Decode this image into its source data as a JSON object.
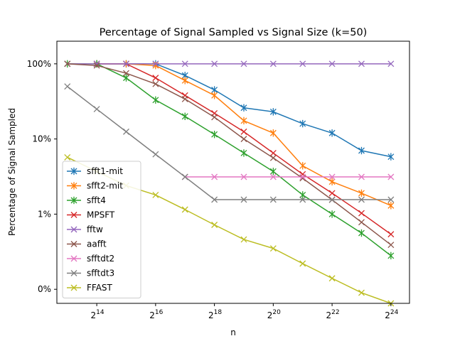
{
  "chart_data": {
    "type": "line",
    "title": "Percentage of Signal Sampled vs Signal Size (k=50)",
    "xlabel": "n",
    "ylabel": "Percentage of Signal Sampled",
    "x_scale": "log2",
    "y_scale": "log10",
    "x_tick_labels": [
      "2^14",
      "2^16",
      "2^18",
      "2^20",
      "2^22",
      "2^24"
    ],
    "x_tick_values": [
      16384,
      65536,
      262144,
      1048576,
      4194304,
      16777216
    ],
    "y_tick_labels": [
      "100%",
      "10%",
      "1%",
      "0%"
    ],
    "y_tick_values": [
      100,
      10,
      1,
      0.1
    ],
    "xlim": [
      6400,
      26000000
    ],
    "ylim": [
      0.065,
      200
    ],
    "grid": false,
    "legend_position": "lower-left",
    "marker": "x",
    "x": [
      8192,
      16384,
      32768,
      65536,
      131072,
      262144,
      524288,
      1048576,
      2097152,
      4194304,
      8388608,
      16777216
    ],
    "series": [
      {
        "name": "sfft1-mit",
        "color": "#1f77b4",
        "marker": "star",
        "x": [
          16384,
          32768,
          65536,
          131072,
          262144,
          524288,
          1048576,
          2097152,
          4194304,
          8388608,
          16777216
        ],
        "values": [
          100,
          100,
          100,
          70,
          45,
          26,
          23,
          16,
          12,
          7,
          5.8
        ]
      },
      {
        "name": "sfft2-mit",
        "color": "#ff7f0e",
        "marker": "star",
        "x": [
          16384,
          32768,
          65536,
          131072,
          262144,
          524288,
          1048576,
          2097152,
          4194304,
          8388608,
          16777216
        ],
        "values": [
          100,
          100,
          95,
          60,
          38,
          17.5,
          12,
          4.4,
          2.7,
          1.9,
          1.3
        ]
      },
      {
        "name": "sfft4",
        "color": "#2ca02c",
        "marker": "star",
        "x": [
          8192,
          16384,
          32768,
          65536,
          131072,
          262144,
          524288,
          1048576,
          2097152,
          4194304,
          8388608,
          16777216
        ],
        "values": [
          100,
          100,
          65,
          33,
          20,
          11.5,
          6.5,
          3.7,
          1.8,
          1.0,
          0.56,
          0.28
        ]
      },
      {
        "name": "MPSFT",
        "color": "#d62728",
        "marker": "x",
        "x": [
          16384,
          32768,
          65536,
          131072,
          262144,
          524288,
          1048576,
          2097152,
          4194304,
          8388608,
          16777216
        ],
        "values": [
          100,
          100,
          65,
          38,
          22,
          12.5,
          6.5,
          3.4,
          1.9,
          1.03,
          0.54
        ]
      },
      {
        "name": "fftw",
        "color": "#9467bd",
        "marker": "x",
        "x": [
          8192,
          16384,
          32768,
          65536,
          131072,
          262144,
          524288,
          1048576,
          2097152,
          4194304,
          8388608,
          16777216
        ],
        "values": [
          100,
          100,
          100,
          100,
          100,
          100,
          100,
          100,
          100,
          100,
          100,
          100
        ]
      },
      {
        "name": "aafft",
        "color": "#8c564b",
        "marker": "x",
        "x": [
          8192,
          16384,
          32768,
          65536,
          131072,
          262144,
          524288,
          1048576,
          2097152,
          4194304,
          8388608,
          16777216
        ],
        "values": [
          100,
          95,
          75,
          54,
          34,
          19.5,
          10,
          5.6,
          3.0,
          1.55,
          0.78,
          0.39
        ]
      },
      {
        "name": "sfftdt2",
        "color": "#e377c2",
        "marker": "x",
        "x": [
          131072,
          262144,
          524288,
          1048576,
          2097152,
          4194304,
          8388608,
          16777216
        ],
        "values": [
          3.13,
          3.13,
          3.13,
          3.13,
          3.13,
          3.13,
          3.13,
          3.13
        ]
      },
      {
        "name": "sfftdt3",
        "color": "#7f7f7f",
        "marker": "x",
        "x": [
          8192,
          16384,
          32768,
          65536,
          131072,
          262144,
          524288,
          1048576,
          2097152,
          4194304,
          8388608,
          16777216
        ],
        "values": [
          50,
          25,
          12.5,
          6.25,
          3.13,
          1.56,
          1.56,
          1.56,
          1.56,
          1.56,
          1.56,
          1.56
        ]
      },
      {
        "name": "FFAST",
        "color": "#bcbd22",
        "marker": "x",
        "x": [
          8192,
          16384,
          32768,
          65536,
          131072,
          262144,
          524288,
          1048576,
          2097152,
          4194304,
          8388608,
          16777216
        ],
        "values": [
          5.7,
          3.7,
          2.4,
          1.8,
          1.15,
          0.72,
          0.46,
          0.35,
          0.22,
          0.14,
          0.09,
          0.065
        ]
      }
    ]
  }
}
